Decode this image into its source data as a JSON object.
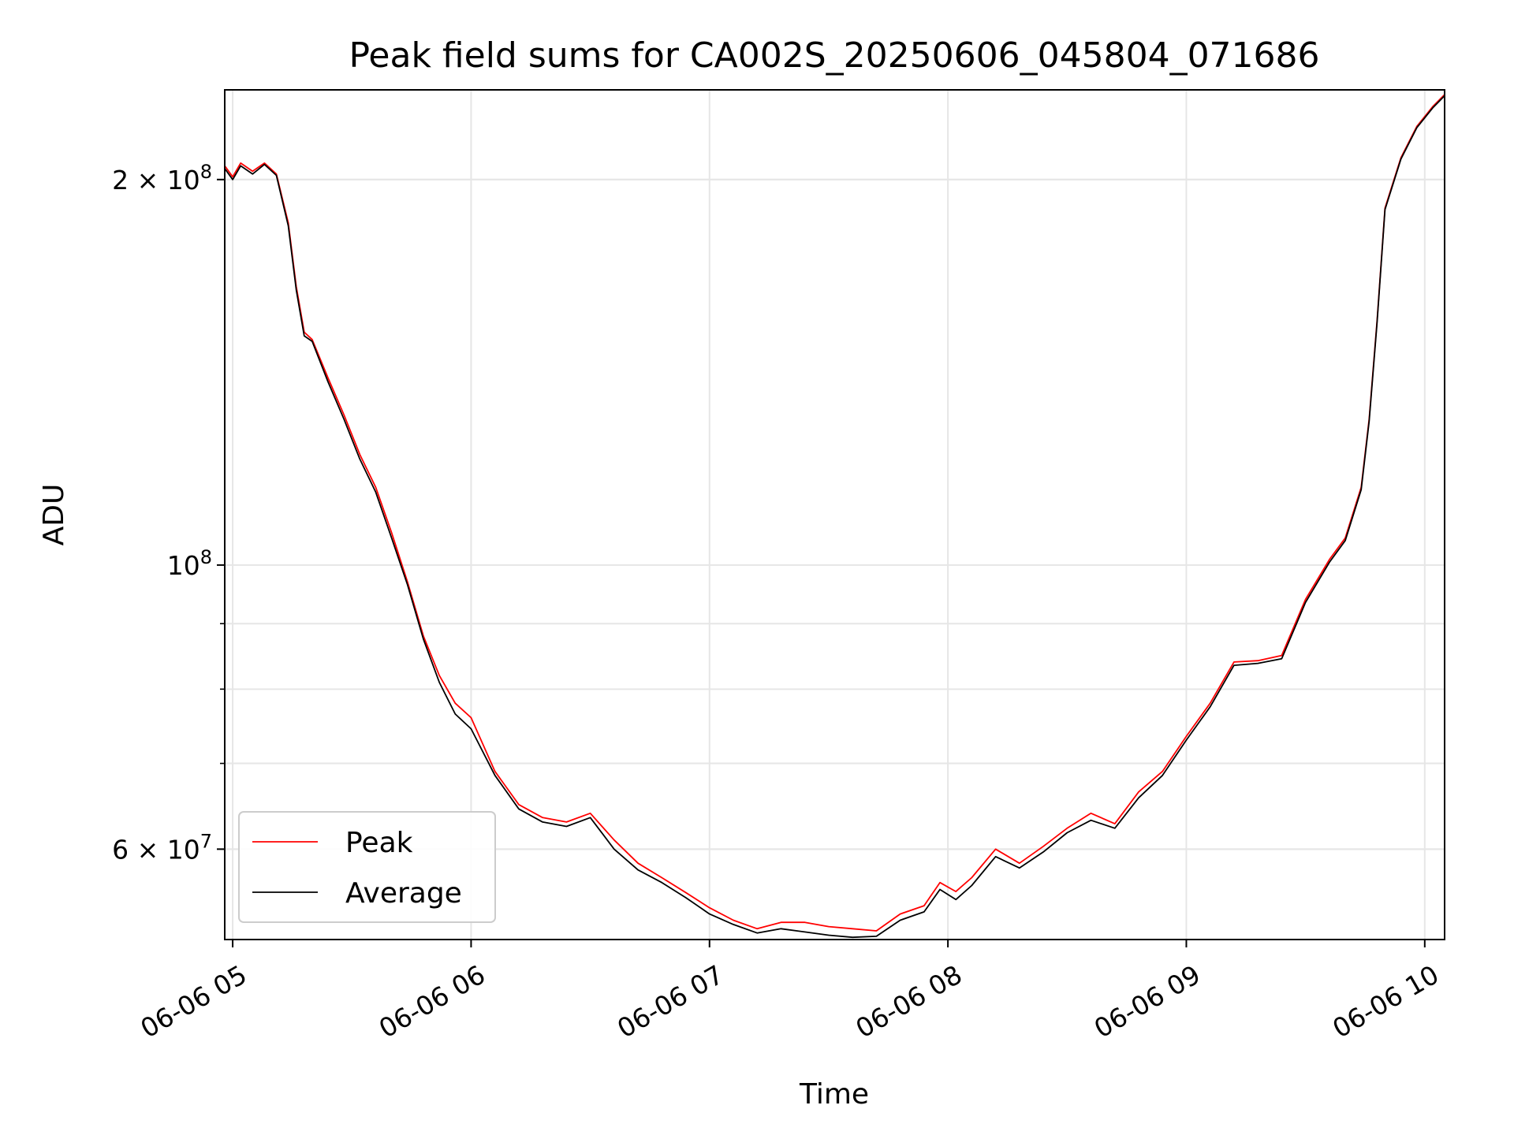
{
  "chart_data": {
    "type": "line",
    "title": "Peak field sums for CA002S_20250606_045804_071686",
    "xlabel": "Time",
    "ylabel": "ADU",
    "yscale": "log",
    "xlim": [
      "06-06 04:58",
      "06-06 10:05"
    ],
    "ylim": [
      51000000,
      235000000
    ],
    "grid": true,
    "legend_position": "lower-left",
    "x_ticks": [
      {
        "label": "06-06 05",
        "value": "06-06 05:00"
      },
      {
        "label": "06-06 06",
        "value": "06-06 06:00"
      },
      {
        "label": "06-06 07",
        "value": "06-06 07:00"
      },
      {
        "label": "06-06 08",
        "value": "06-06 08:00"
      },
      {
        "label": "06-06 09",
        "value": "06-06 09:00"
      },
      {
        "label": "06-06 10",
        "value": "06-06 10:00"
      }
    ],
    "y_ticks": [
      {
        "base": "2 × 10",
        "exp": "8",
        "value": 200000000
      },
      {
        "base": "10",
        "exp": "8",
        "value": 100000000
      },
      {
        "base": "6 × 10",
        "exp": "7",
        "value": 60000000
      }
    ],
    "series": [
      {
        "name": "Peak",
        "color": "#ff0000",
        "x": [
          "06-06 04:58",
          "06-06 05:00",
          "06-06 05:02",
          "06-06 05:05",
          "06-06 05:08",
          "06-06 05:11",
          "06-06 05:14",
          "06-06 05:16",
          "06-06 05:18",
          "06-06 05:20",
          "06-06 05:24",
          "06-06 05:28",
          "06-06 05:32",
          "06-06 05:36",
          "06-06 05:40",
          "06-06 05:44",
          "06-06 05:48",
          "06-06 05:52",
          "06-06 05:56",
          "06-06 06:00",
          "06-06 06:06",
          "06-06 06:12",
          "06-06 06:18",
          "06-06 06:24",
          "06-06 06:30",
          "06-06 06:36",
          "06-06 06:42",
          "06-06 06:48",
          "06-06 06:54",
          "06-06 07:00",
          "06-06 07:06",
          "06-06 07:12",
          "06-06 07:18",
          "06-06 07:24",
          "06-06 07:30",
          "06-06 07:36",
          "06-06 07:42",
          "06-06 07:48",
          "06-06 07:54",
          "06-06 07:58",
          "06-06 08:02",
          "06-06 08:06",
          "06-06 08:12",
          "06-06 08:18",
          "06-06 08:24",
          "06-06 08:30",
          "06-06 08:36",
          "06-06 08:42",
          "06-06 08:48",
          "06-06 08:54",
          "06-06 09:00",
          "06-06 09:06",
          "06-06 09:12",
          "06-06 09:18",
          "06-06 09:24",
          "06-06 09:30",
          "06-06 09:36",
          "06-06 09:40",
          "06-06 09:44",
          "06-06 09:46",
          "06-06 09:48",
          "06-06 09:50",
          "06-06 09:54",
          "06-06 09:58",
          "06-06 10:02",
          "06-06 10:05"
        ],
        "y": [
          205000000,
          201000000,
          206000000,
          203000000,
          206000000,
          202000000,
          185000000,
          165000000,
          152000000,
          150000000,
          140000000,
          131000000,
          122000000,
          115000000,
          106000000,
          97000000,
          88000000,
          82000000,
          78000000,
          76000000,
          69000000,
          65000000,
          63500000,
          63000000,
          64000000,
          61000000,
          58500000,
          57000000,
          55500000,
          54000000,
          52800000,
          52000000,
          52600000,
          52600000,
          52200000,
          52000000,
          51800000,
          53400000,
          54200000,
          56500000,
          55600000,
          57000000,
          60000000,
          58500000,
          60300000,
          62300000,
          64000000,
          62800000,
          66500000,
          69000000,
          73500000,
          78000000,
          84000000,
          84200000,
          85000000,
          94000000,
          101000000,
          105000000,
          115000000,
          130000000,
          155000000,
          190000000,
          208000000,
          220000000,
          228000000,
          233000000
        ]
      },
      {
        "name": "Average",
        "color": "#000000",
        "x": [
          "06-06 04:58",
          "06-06 05:00",
          "06-06 05:02",
          "06-06 05:05",
          "06-06 05:08",
          "06-06 05:11",
          "06-06 05:14",
          "06-06 05:16",
          "06-06 05:18",
          "06-06 05:20",
          "06-06 05:24",
          "06-06 05:28",
          "06-06 05:32",
          "06-06 05:36",
          "06-06 05:40",
          "06-06 05:44",
          "06-06 05:48",
          "06-06 05:52",
          "06-06 05:56",
          "06-06 06:00",
          "06-06 06:06",
          "06-06 06:12",
          "06-06 06:18",
          "06-06 06:24",
          "06-06 06:30",
          "06-06 06:36",
          "06-06 06:42",
          "06-06 06:48",
          "06-06 06:54",
          "06-06 07:00",
          "06-06 07:06",
          "06-06 07:12",
          "06-06 07:18",
          "06-06 07:24",
          "06-06 07:30",
          "06-06 07:36",
          "06-06 07:42",
          "06-06 07:48",
          "06-06 07:54",
          "06-06 07:58",
          "06-06 08:02",
          "06-06 08:06",
          "06-06 08:12",
          "06-06 08:18",
          "06-06 08:24",
          "06-06 08:30",
          "06-06 08:36",
          "06-06 08:42",
          "06-06 08:48",
          "06-06 08:54",
          "06-06 09:00",
          "06-06 09:06",
          "06-06 09:12",
          "06-06 09:18",
          "06-06 09:24",
          "06-06 09:30",
          "06-06 09:36",
          "06-06 09:40",
          "06-06 09:44",
          "06-06 09:46",
          "06-06 09:48",
          "06-06 09:50",
          "06-06 09:54",
          "06-06 09:58",
          "06-06 10:02",
          "06-06 10:05"
        ],
        "y": [
          204000000,
          200000000,
          205000000,
          202000000,
          205500000,
          201500000,
          184000000,
          164000000,
          151000000,
          149500000,
          139000000,
          130000000,
          121000000,
          114000000,
          105000000,
          96500000,
          87500000,
          81000000,
          76500000,
          74500000,
          68500000,
          64500000,
          63000000,
          62500000,
          63500000,
          60000000,
          57800000,
          56500000,
          55000000,
          53400000,
          52400000,
          51600000,
          52000000,
          51700000,
          51400000,
          51200000,
          51300000,
          52800000,
          53600000,
          55800000,
          54800000,
          56200000,
          59200000,
          58000000,
          59700000,
          61800000,
          63200000,
          62300000,
          65800000,
          68500000,
          73000000,
          77500000,
          83500000,
          83800000,
          84500000,
          93500000,
          100500000,
          104500000,
          114500000,
          129500000,
          154500000,
          189500000,
          207500000,
          219500000,
          227500000,
          232500000
        ]
      }
    ]
  }
}
